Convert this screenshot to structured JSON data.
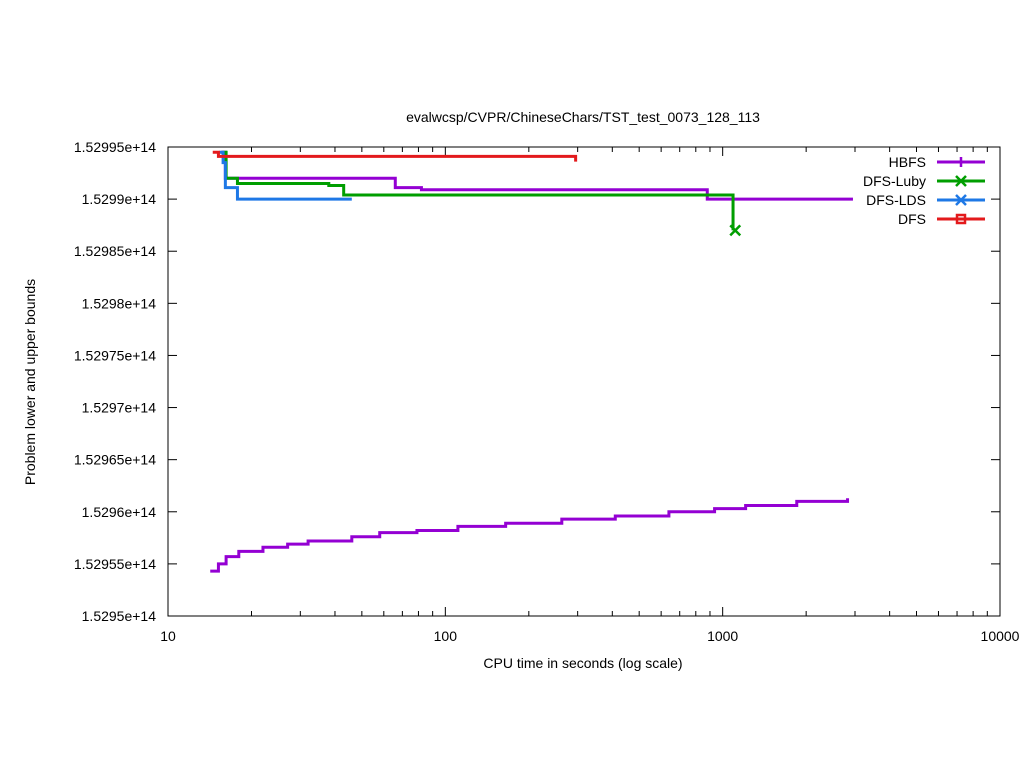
{
  "chart_data": {
    "type": "line",
    "title": "evalwcsp/CVPR/ChineseChars/TST_test_0073_128_113",
    "xlabel": "CPU time in seconds (log scale)",
    "ylabel": "Problem lower and upper bounds",
    "x_scale": "log",
    "xlim": [
      10,
      10000
    ],
    "ylim": [
      152950000000000.0,
      152995000000000.0
    ],
    "x_ticks": [
      10,
      100,
      1000,
      10000
    ],
    "x_tick_labels": [
      "10",
      "100",
      "1000",
      "10000"
    ],
    "y_ticks": [
      152950000000000.0,
      152955000000000.0,
      152960000000000.0,
      152965000000000.0,
      152970000000000.0,
      152975000000000.0,
      152980000000000.0,
      152985000000000.0,
      152990000000000.0,
      152995000000000.0
    ],
    "y_tick_labels": [
      "1.5295e+14",
      "1.52955e+14",
      "1.5296e+14",
      "1.52965e+14",
      "1.5297e+14",
      "1.52975e+14",
      "1.5298e+14",
      "1.52985e+14",
      "1.5299e+14",
      "1.52995e+14"
    ],
    "legend_position": "top-right",
    "grid": false,
    "series": [
      {
        "name": "HBFS",
        "color": "#9400d3",
        "marker": "plus",
        "step": true,
        "lines": [
          {
            "x": [
              15.5,
              16.1,
              66,
              82,
              880,
              2950
            ],
            "y": [
              152994500000000.0,
              152992000000000.0,
              152991100000000.0,
              152990900000000.0,
              152990000000000.0,
              152990000000000.0
            ]
          },
          {
            "x": [
              14.2,
              15.2,
              16.2,
              18,
              22,
              27,
              32,
              46,
              58,
              79,
              111,
              165,
              263,
              410,
              640,
              935,
              1210,
              1850,
              2820,
              2820
            ],
            "y": [
              152954300000000.0,
              152955000000000.0,
              152955700000000.0,
              152956200000000.0,
              152956600000000.0,
              152956900000000.0,
              152957200000000.0,
              152957600000000.0,
              152958000000000.0,
              152958200000000.0,
              152958600000000.0,
              152958900000000.0,
              152959300000000.0,
              152959600000000.0,
              152960000000000.0,
              152960300000000.0,
              152960600000000.0,
              152961000000000.0,
              152961000000000.0,
              152961300000000.0
            ]
          }
        ],
        "end_marker": null
      },
      {
        "name": "DFS-Luby",
        "color": "#009e00",
        "marker": "x",
        "step": true,
        "lines": [
          {
            "x": [
              15.7,
              16.2,
              17.8,
              38,
              43,
              1090,
              1090
            ],
            "y": [
              152994500000000.0,
              152992000000000.0,
              152991500000000.0,
              152991300000000.0,
              152990400000000.0,
              152990300000000.0,
              152987000000000.0
            ]
          }
        ],
        "end_marker": [
          1110,
          152987000000000.0
        ]
      },
      {
        "name": "DFS-LDS",
        "color": "#1e78e6",
        "marker": "asterisk",
        "step": true,
        "lines": [
          {
            "x": [
              15.3,
              15.8,
              16.1,
              17.8,
              46
            ],
            "y": [
              152994500000000.0,
              152993500000000.0,
              152991100000000.0,
              152990000000000.0,
              152990000000000.0
            ]
          }
        ],
        "end_marker": null
      },
      {
        "name": "DFS",
        "color": "#e31a1c",
        "marker": "square",
        "step": true,
        "lines": [
          {
            "x": [
              14.5,
              15.2,
              270,
              295,
              295
            ],
            "y": [
              152994500000000.0,
              152994100000000.0,
              152994100000000.0,
              152994000000000.0,
              152993600000000.0
            ]
          }
        ],
        "end_marker": null
      }
    ]
  }
}
